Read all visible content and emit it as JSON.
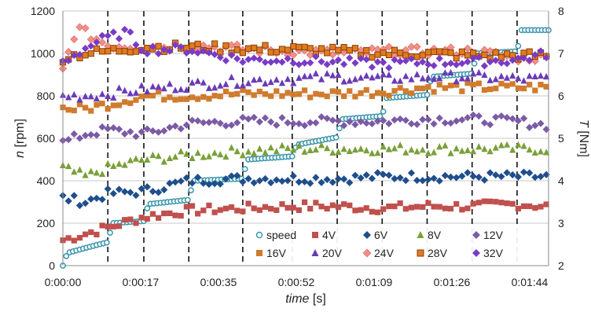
{
  "chart_data": {
    "type": "scatter",
    "x_axis": {
      "label_italic": "time",
      "label_unit": "[s]",
      "ticks": [
        "0:00:00",
        "0:00:17",
        "0:00:35",
        "0:00:52",
        "0:01:09",
        "0:01:26",
        "0:01:44"
      ],
      "range_seconds": [
        0,
        108
      ],
      "dashed_gridlines_at_seconds": [
        10,
        18,
        28,
        40,
        51,
        61,
        71,
        81,
        91,
        101
      ]
    },
    "y_left": {
      "label_italic": "n",
      "label_unit": "[rpm]",
      "range": [
        0,
        1200
      ],
      "ticks": [
        0,
        200,
        400,
        600,
        800,
        1000,
        1200
      ]
    },
    "y_right": {
      "label_italic": "T",
      "label_unit": "[Nm]",
      "range": [
        2,
        8
      ],
      "ticks": [
        2,
        3,
        4,
        5,
        6,
        7,
        8
      ]
    },
    "grid": "horizontal solid lines + vertical dashed lines",
    "legend_placement": "bottom-right (inside plot)",
    "series": [
      {
        "name": "speed",
        "axis": "left",
        "marker": "circle-open",
        "color": "#3a95ad",
        "segments": [
          [
            0,
            0
          ],
          [
            1,
            60
          ],
          [
            8,
            100
          ],
          [
            10,
            110
          ],
          [
            11,
            200
          ],
          [
            18,
            210
          ],
          [
            19,
            290
          ],
          [
            28,
            310
          ],
          [
            29,
            400
          ],
          [
            40,
            410
          ],
          [
            41,
            500
          ],
          [
            51,
            515
          ],
          [
            52,
            570
          ],
          [
            61,
            605
          ],
          [
            62,
            690
          ],
          [
            71,
            705
          ],
          [
            72,
            790
          ],
          [
            81,
            805
          ],
          [
            82,
            890
          ],
          [
            91,
            905
          ],
          [
            92,
            1000
          ],
          [
            101,
            1010
          ],
          [
            102,
            1110
          ],
          [
            108,
            1110
          ]
        ]
      },
      {
        "name": "4V",
        "axis": "right",
        "marker": "square",
        "color": "#c0504d",
        "points": [
          [
            0,
            2.6
          ],
          [
            10,
            2.9
          ],
          [
            18,
            3.15
          ],
          [
            28,
            3.3
          ],
          [
            40,
            3.35
          ],
          [
            51,
            3.4
          ],
          [
            61,
            3.4
          ],
          [
            71,
            3.35
          ],
          [
            81,
            3.4
          ],
          [
            91,
            3.4
          ],
          [
            101,
            3.45
          ],
          [
            108,
            3.4
          ]
        ]
      },
      {
        "name": "6V",
        "axis": "right",
        "marker": "diamond",
        "color": "#1f4e8c",
        "points": [
          [
            0,
            3.6
          ],
          [
            5,
            3.5
          ],
          [
            10,
            3.7
          ],
          [
            18,
            3.75
          ],
          [
            28,
            4.0
          ],
          [
            40,
            4.05
          ],
          [
            51,
            4.05
          ],
          [
            61,
            4.05
          ],
          [
            71,
            4.1
          ],
          [
            81,
            4.1
          ],
          [
            91,
            4.1
          ],
          [
            101,
            4.1
          ],
          [
            108,
            4.1
          ]
        ]
      },
      {
        "name": "8V",
        "axis": "right",
        "marker": "triangle",
        "color": "#7aa03a",
        "points": [
          [
            0,
            4.3
          ],
          [
            5,
            4.1
          ],
          [
            10,
            4.3
          ],
          [
            18,
            4.5
          ],
          [
            28,
            4.6
          ],
          [
            40,
            4.7
          ],
          [
            51,
            4.75
          ],
          [
            61,
            4.75
          ],
          [
            71,
            4.75
          ],
          [
            81,
            4.75
          ],
          [
            91,
            4.75
          ],
          [
            101,
            4.75
          ],
          [
            108,
            4.75
          ]
        ]
      },
      {
        "name": "12V",
        "axis": "right",
        "marker": "diamond",
        "color": "#7b5ba6",
        "points": [
          [
            0,
            4.9
          ],
          [
            5,
            5.1
          ],
          [
            10,
            5.2
          ],
          [
            18,
            5.1
          ],
          [
            28,
            5.35
          ],
          [
            40,
            5.4
          ],
          [
            51,
            5.4
          ],
          [
            61,
            5.4
          ],
          [
            71,
            5.4
          ],
          [
            81,
            5.45
          ],
          [
            91,
            5.45
          ],
          [
            101,
            5.4
          ],
          [
            108,
            5.3
          ]
        ]
      },
      {
        "name": "16V",
        "axis": "right",
        "marker": "square",
        "color": "#d07b2d",
        "points": [
          [
            0,
            5.7
          ],
          [
            5,
            5.7
          ],
          [
            10,
            5.8
          ],
          [
            18,
            6.0
          ],
          [
            28,
            6.0
          ],
          [
            40,
            6.05
          ],
          [
            51,
            6.05
          ],
          [
            61,
            6.05
          ],
          [
            71,
            6.1
          ],
          [
            81,
            6.2
          ],
          [
            91,
            6.2
          ],
          [
            101,
            6.2
          ],
          [
            108,
            6.2
          ]
        ]
      },
      {
        "name": "20V",
        "axis": "right",
        "marker": "triangle",
        "color": "#6a3bb7",
        "points": [
          [
            0,
            6.0
          ],
          [
            5,
            6.0
          ],
          [
            10,
            6.05
          ],
          [
            18,
            6.15
          ],
          [
            28,
            6.25
          ],
          [
            40,
            6.35
          ],
          [
            51,
            6.4
          ],
          [
            61,
            6.45
          ],
          [
            71,
            6.4
          ],
          [
            81,
            6.45
          ],
          [
            91,
            6.45
          ],
          [
            101,
            6.4
          ],
          [
            108,
            6.4
          ]
        ]
      },
      {
        "name": "24V",
        "axis": "right",
        "marker": "diamond-light",
        "color": "#f08f88",
        "points": [
          [
            0,
            6.6
          ],
          [
            3,
            7.6
          ],
          [
            10,
            7.2
          ],
          [
            18,
            7.15
          ],
          [
            28,
            7.2
          ],
          [
            40,
            7.1
          ],
          [
            51,
            7.05
          ],
          [
            61,
            7.0
          ],
          [
            71,
            7.05
          ],
          [
            81,
            7.05
          ],
          [
            91,
            7.05
          ],
          [
            101,
            6.9
          ],
          [
            108,
            6.9
          ]
        ]
      },
      {
        "name": "28V",
        "axis": "right",
        "marker": "square-outline",
        "color": "#e07b20",
        "points": [
          [
            0,
            6.9
          ],
          [
            5,
            7.0
          ],
          [
            10,
            7.05
          ],
          [
            18,
            7.15
          ],
          [
            28,
            7.15
          ],
          [
            40,
            7.1
          ],
          [
            51,
            7.1
          ],
          [
            61,
            7.05
          ],
          [
            71,
            7.0
          ],
          [
            81,
            7.0
          ],
          [
            91,
            6.95
          ],
          [
            101,
            6.95
          ],
          [
            108,
            6.95
          ]
        ]
      },
      {
        "name": "32V",
        "axis": "right",
        "marker": "diamond",
        "color": "#7a3bc7",
        "points": [
          [
            0,
            6.8
          ],
          [
            3,
            7.0
          ],
          [
            8,
            7.3
          ],
          [
            14,
            7.5
          ],
          [
            18,
            7.1
          ],
          [
            28,
            7.1
          ],
          [
            40,
            6.85
          ],
          [
            51,
            6.85
          ],
          [
            61,
            6.8
          ],
          [
            71,
            6.75
          ],
          [
            81,
            6.8
          ],
          [
            91,
            6.8
          ],
          [
            101,
            6.85
          ],
          [
            108,
            7.0
          ]
        ]
      }
    ]
  }
}
